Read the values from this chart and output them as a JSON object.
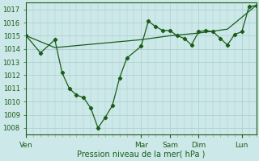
{
  "xlabel": "Pression niveau de la mer( hPa )",
  "background_color": "#cce8e8",
  "grid_color": "#aacccc",
  "line_color": "#1a5c1a",
  "ylim": [
    1007.5,
    1017.5
  ],
  "yticks": [
    1008,
    1009,
    1010,
    1011,
    1012,
    1013,
    1014,
    1015,
    1016,
    1017
  ],
  "xlim": [
    0,
    96
  ],
  "day_labels": [
    "Ven",
    "Mar",
    "Sam",
    "Dim",
    "Lun"
  ],
  "day_positions": [
    0,
    48,
    60,
    72,
    90
  ],
  "minor_tick_interval": 3,
  "series1_x": [
    0,
    6,
    12,
    15,
    18,
    21,
    24,
    27,
    30,
    33,
    36,
    39,
    42,
    48,
    51,
    54,
    57,
    60,
    63,
    66,
    69,
    72,
    75,
    78,
    81,
    84,
    87,
    90,
    93,
    96
  ],
  "series1_y": [
    1015.0,
    1013.7,
    1014.7,
    1012.2,
    1011.0,
    1010.5,
    1010.3,
    1009.5,
    1008.0,
    1008.8,
    1009.7,
    1011.8,
    1013.3,
    1014.2,
    1016.1,
    1015.7,
    1015.4,
    1015.4,
    1015.0,
    1014.8,
    1014.3,
    1015.3,
    1015.4,
    1015.3,
    1014.8,
    1014.3,
    1015.1,
    1015.3,
    1017.2,
    1017.3
  ],
  "series2_x": [
    0,
    12,
    24,
    36,
    48,
    60,
    72,
    84,
    96
  ],
  "series2_y": [
    1015.0,
    1014.1,
    1014.3,
    1014.5,
    1014.7,
    1015.0,
    1015.2,
    1015.5,
    1017.3
  ]
}
